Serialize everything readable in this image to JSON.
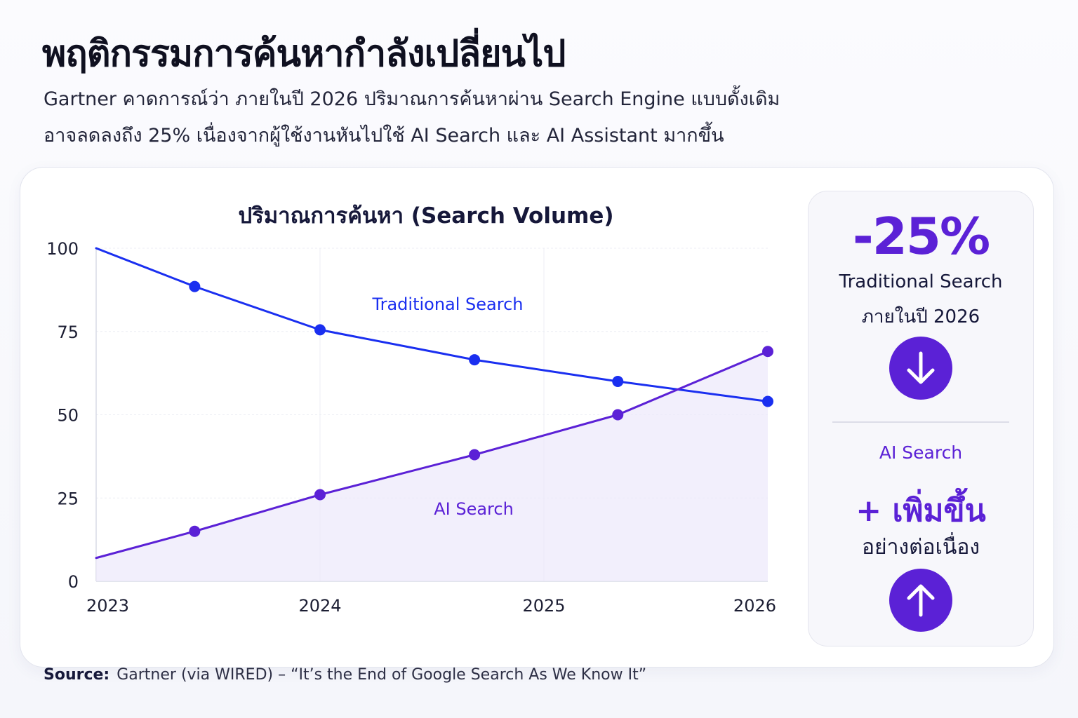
{
  "header": {
    "title": "พฤติกรรมการค้นหากำลังเปลี่ยนไป",
    "subtitle_line1": "Gartner คาดการณ์ว่า ภายในปี 2026 ปริมาณการค้นหาผ่าน Search Engine แบบดั้งเดิม",
    "subtitle_line2": "อาจลดลงถึง 25% เนื่องจากผู้ใช้งานหันไปใช้ AI Search และ AI Assistant มากขึ้น"
  },
  "chart_data": {
    "type": "line",
    "title": "ปริมาณการค้นหา (Search Volume)",
    "xlabel": "",
    "ylabel": "",
    "xlim": [
      2023,
      2026
    ],
    "ylim": [
      0,
      100
    ],
    "x_ticks": [
      "2023",
      "2024",
      "2025",
      "2026"
    ],
    "y_ticks": [
      "0",
      "25",
      "50",
      "75",
      "100"
    ],
    "grid": true,
    "series": [
      {
        "name": "Traditional Search",
        "color": "#1a2ff0",
        "x": [
          2023.0,
          2023.44,
          2024.0,
          2024.69,
          2025.33,
          2026.0
        ],
        "values": [
          100,
          88.5,
          75.5,
          66.5,
          60,
          54
        ]
      },
      {
        "name": "AI Search",
        "color": "#5b21d6",
        "x": [
          2023.0,
          2023.44,
          2024.0,
          2024.69,
          2025.33,
          2026.0
        ],
        "values": [
          7,
          15,
          26,
          38,
          50,
          69
        ]
      }
    ]
  },
  "side_panel": {
    "big_value": "-25%",
    "traditional_label": "Traditional Search",
    "traditional_period": "ภายในปี 2026",
    "down_icon": "arrow-down-icon",
    "ai_label": "AI Search",
    "ai_big": "+ เพิ่มขึ้น",
    "ai_desc": "อย่างต่อเนื่อง",
    "up_icon": "arrow-up-icon",
    "accent": "#5b21d6"
  },
  "footer": {
    "source_label": "Source:",
    "source_text": "Gartner (via WIRED) – “It’s the End of Google Search As We Know It”"
  }
}
